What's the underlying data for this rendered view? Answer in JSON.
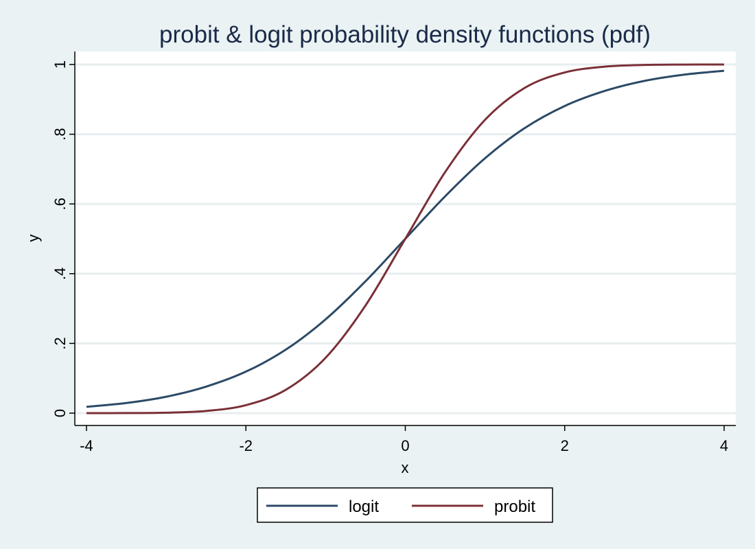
{
  "chart_data": {
    "type": "line",
    "title": "probit & logit probability density functions (pdf)",
    "xlabel": "x",
    "ylabel": "y",
    "xlim": [
      -4,
      4
    ],
    "ylim": [
      0,
      1
    ],
    "x_ticks": [
      {
        "value": -4,
        "label": "-4"
      },
      {
        "value": -2,
        "label": "-2"
      },
      {
        "value": 0,
        "label": "0"
      },
      {
        "value": 2,
        "label": "2"
      },
      {
        "value": 4,
        "label": "4"
      }
    ],
    "y_ticks": [
      {
        "value": 0,
        "label": "0"
      },
      {
        "value": 0.2,
        "label": ".2"
      },
      {
        "value": 0.4,
        "label": ".4"
      },
      {
        "value": 0.6,
        "label": ".6"
      },
      {
        "value": 0.8,
        "label": ".8"
      },
      {
        "value": 1,
        "label": "1"
      }
    ],
    "grid": true,
    "legend_position": "bottom-center",
    "series": [
      {
        "name": "logit",
        "color": "#2c4a66",
        "x": [
          -4,
          -3.5,
          -3,
          -2.5,
          -2,
          -1.5,
          -1,
          -0.5,
          0,
          0.5,
          1,
          1.5,
          2,
          2.5,
          3,
          3.5,
          4
        ],
        "y": [
          0.018,
          0.029,
          0.047,
          0.076,
          0.119,
          0.182,
          0.269,
          0.378,
          0.5,
          0.622,
          0.731,
          0.818,
          0.881,
          0.924,
          0.953,
          0.971,
          0.982
        ]
      },
      {
        "name": "probit",
        "color": "#7a3036",
        "x": [
          -4,
          -3.5,
          -3,
          -2.5,
          -2,
          -1.5,
          -1,
          -0.5,
          0,
          0.5,
          1,
          1.5,
          2,
          2.5,
          3,
          3.5,
          4
        ],
        "y": [
          0.0,
          0.0002,
          0.0013,
          0.0062,
          0.0228,
          0.0668,
          0.1587,
          0.3085,
          0.5,
          0.6915,
          0.8413,
          0.9332,
          0.9772,
          0.9938,
          0.9987,
          0.9998,
          1.0
        ]
      }
    ]
  }
}
